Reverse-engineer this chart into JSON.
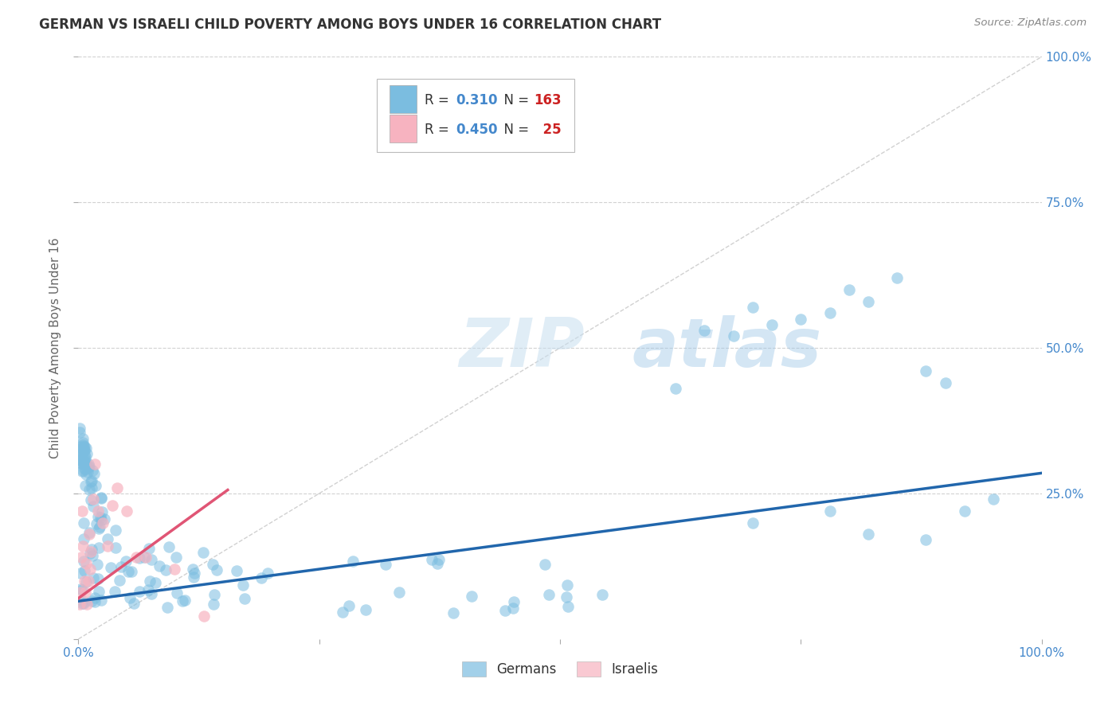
{
  "title": "GERMAN VS ISRAELI CHILD POVERTY AMONG BOYS UNDER 16 CORRELATION CHART",
  "source": "Source: ZipAtlas.com",
  "ylabel": "Child Poverty Among Boys Under 16",
  "watermark": "ZIPatlas",
  "german_R": 0.31,
  "german_N": 163,
  "israeli_R": 0.45,
  "israeli_N": 25,
  "german_color": "#7bbde0",
  "israeli_color": "#f7b3c0",
  "german_line_color": "#2166ac",
  "israeli_line_color": "#e05575",
  "diagonal_color": "#cccccc",
  "background_color": "#ffffff",
  "grid_color": "#cccccc",
  "title_color": "#333333",
  "axis_label_color": "#666666",
  "tick_label_color": "#4488cc",
  "legend_R_color": "#4488cc",
  "legend_N_color": "#cc2222"
}
